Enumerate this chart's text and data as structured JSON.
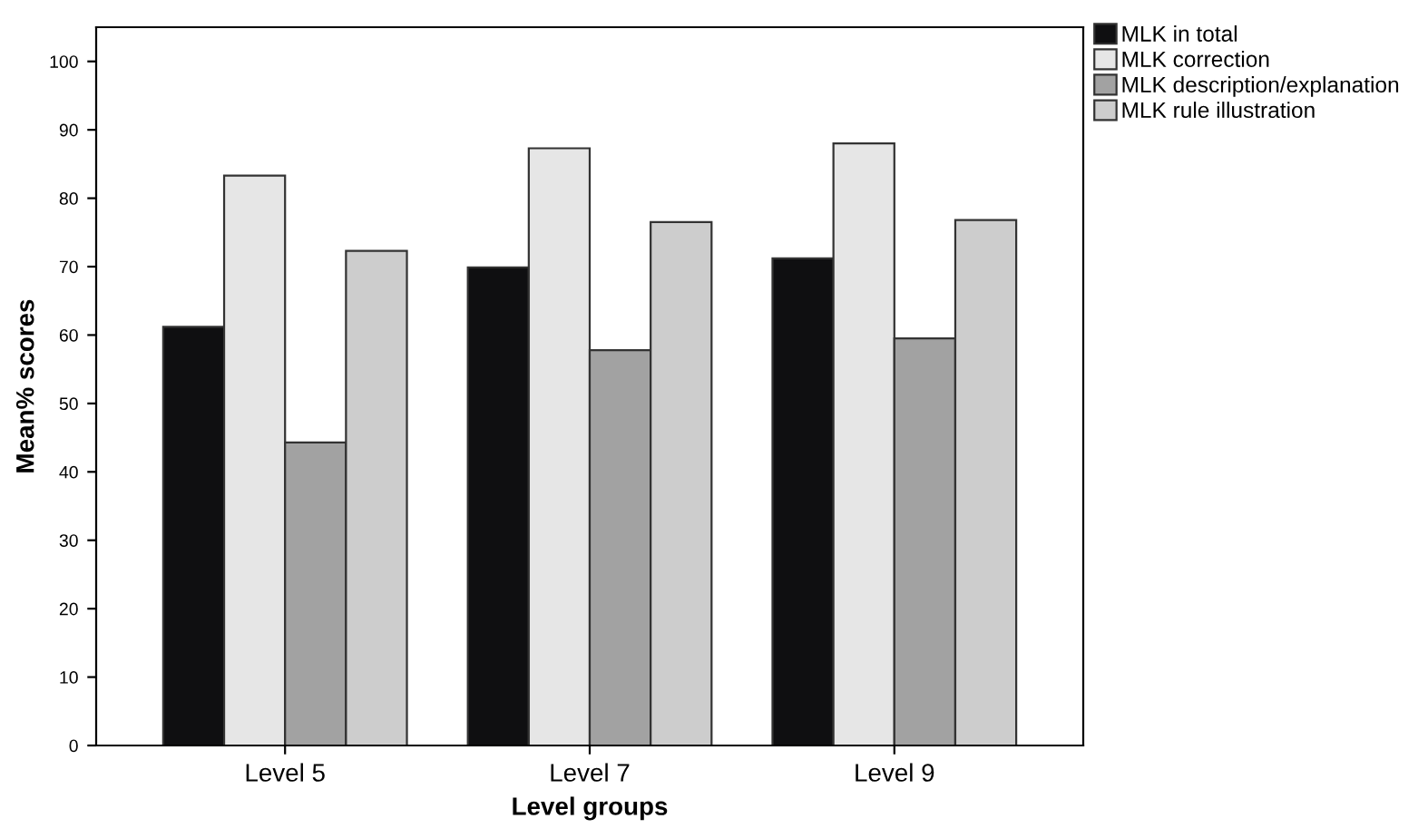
{
  "chart_data": {
    "type": "bar",
    "xlabel": "Level groups",
    "ylabel": "Mean% scores",
    "categories": [
      "Level 5",
      "Level 7",
      "Level 9"
    ],
    "series": [
      {
        "name": "MLK in total",
        "color": "#0f0f11",
        "values": [
          61.2,
          69.9,
          71.2
        ]
      },
      {
        "name": "MLK correction",
        "color": "#e6e6e6",
        "values": [
          83.3,
          87.3,
          88.0
        ]
      },
      {
        "name": "MLK description/explanation",
        "color": "#a2a2a2",
        "values": [
          44.3,
          57.8,
          59.5
        ]
      },
      {
        "name": "MLK rule illustration",
        "color": "#cdcdcd",
        "values": [
          72.3,
          76.5,
          76.8
        ]
      }
    ],
    "ylim": [
      0,
      105
    ],
    "yticks": [
      0,
      10,
      20,
      30,
      40,
      50,
      60,
      70,
      80,
      90,
      100
    ],
    "grid": false,
    "legend": "top right"
  }
}
